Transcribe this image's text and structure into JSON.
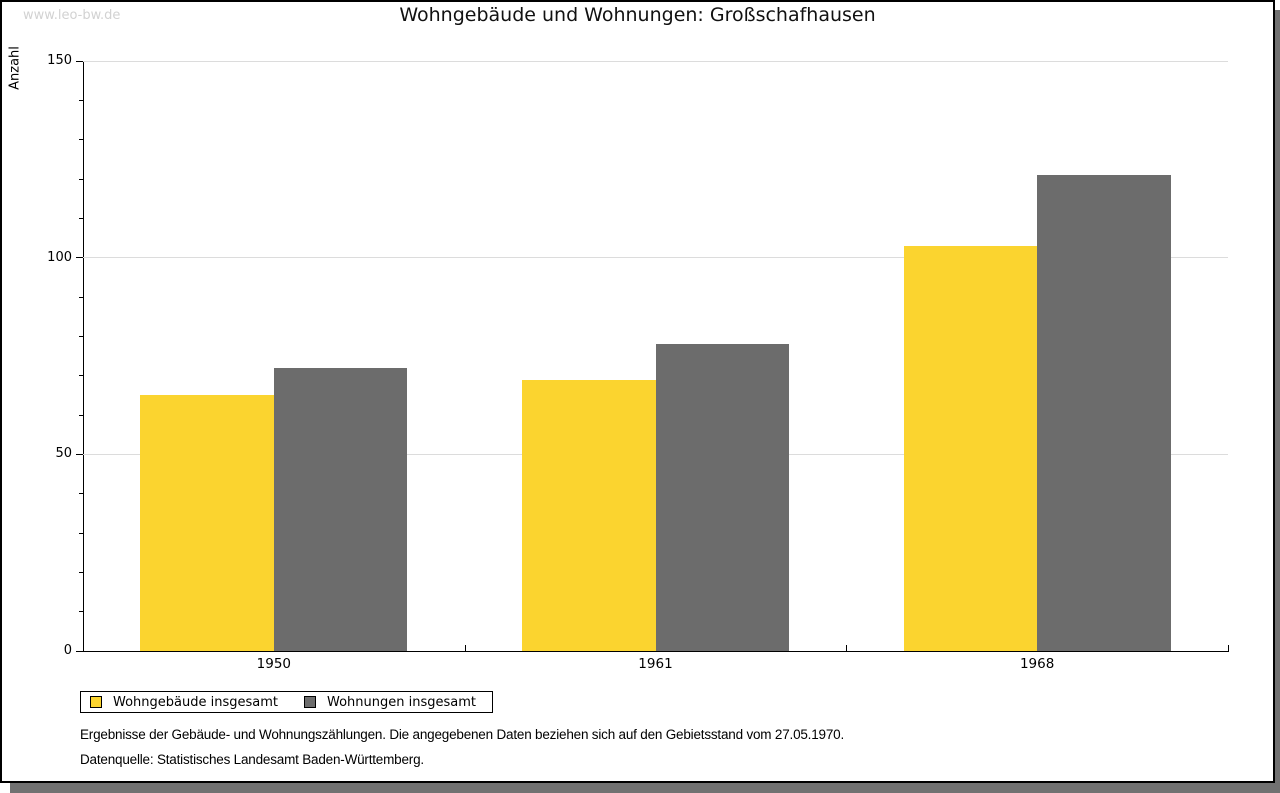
{
  "watermark": "www.leo-bw.de",
  "title": "Wohngebäude und Wohnungen: Großschafhausen",
  "footer": {
    "line1": "Ergebnisse der Gebäude- und Wohnungszählungen. Die angegebenen Daten beziehen sich auf den Gebietsstand vom 27.05.1970.",
    "line2": "Datenquelle: Statistisches Landesamt Baden-Württemberg."
  },
  "chart_data": {
    "type": "bar",
    "title": "Wohngebäude und Wohnungen: Großschafhausen",
    "xlabel": "",
    "ylabel": "Anzahl",
    "categories": [
      "1950",
      "1961",
      "1968"
    ],
    "series": [
      {
        "name": "Wohngebäude insgesamt",
        "color": "#FBD42F",
        "values": [
          65,
          69,
          103
        ]
      },
      {
        "name": "Wohnungen insgesamt",
        "color": "#6C6C6C",
        "values": [
          72,
          78,
          121
        ]
      }
    ],
    "ylim": [
      0,
      150
    ],
    "ytick_major": 50,
    "ytick_minor": 10,
    "grid": true,
    "legend_position": "bottom-left"
  },
  "colors": {
    "gridline": "#dcdcdc",
    "axis": "#000000",
    "watermark": "#d2d2d2",
    "frame_border": "#000000",
    "frame_shadow": "#717171",
    "background": "#ffffff"
  }
}
